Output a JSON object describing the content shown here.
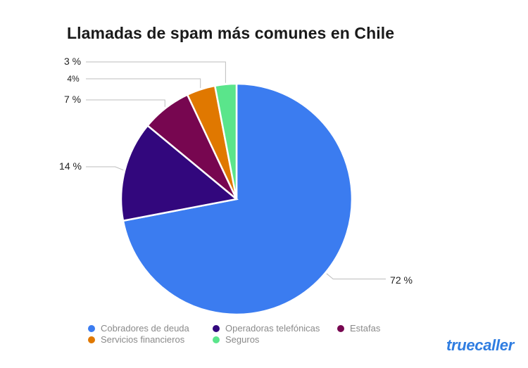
{
  "chart_data": {
    "type": "pie",
    "title": "Llamadas de spam más comunes en Chile",
    "start": "12 o'clock, clockwise",
    "slices": [
      {
        "name": "Cobradores de deuda",
        "value": 72,
        "label": "72 %",
        "color": "#3b7cf0"
      },
      {
        "name": "Operadoras telefónicas",
        "value": 14,
        "label": "14 %",
        "color": "#32077d"
      },
      {
        "name": "Estafas",
        "value": 7,
        "label": "7 %",
        "color": "#770650"
      },
      {
        "name": "Servicios financieros",
        "value": 4,
        "label": "4%",
        "color": "#e07800"
      },
      {
        "name": "Seguros",
        "value": 3,
        "label": "3 %",
        "color": "#5ae58b"
      }
    ],
    "legend_position": "bottom"
  },
  "brand": "truecaller",
  "brand_color": "#2f7de1"
}
